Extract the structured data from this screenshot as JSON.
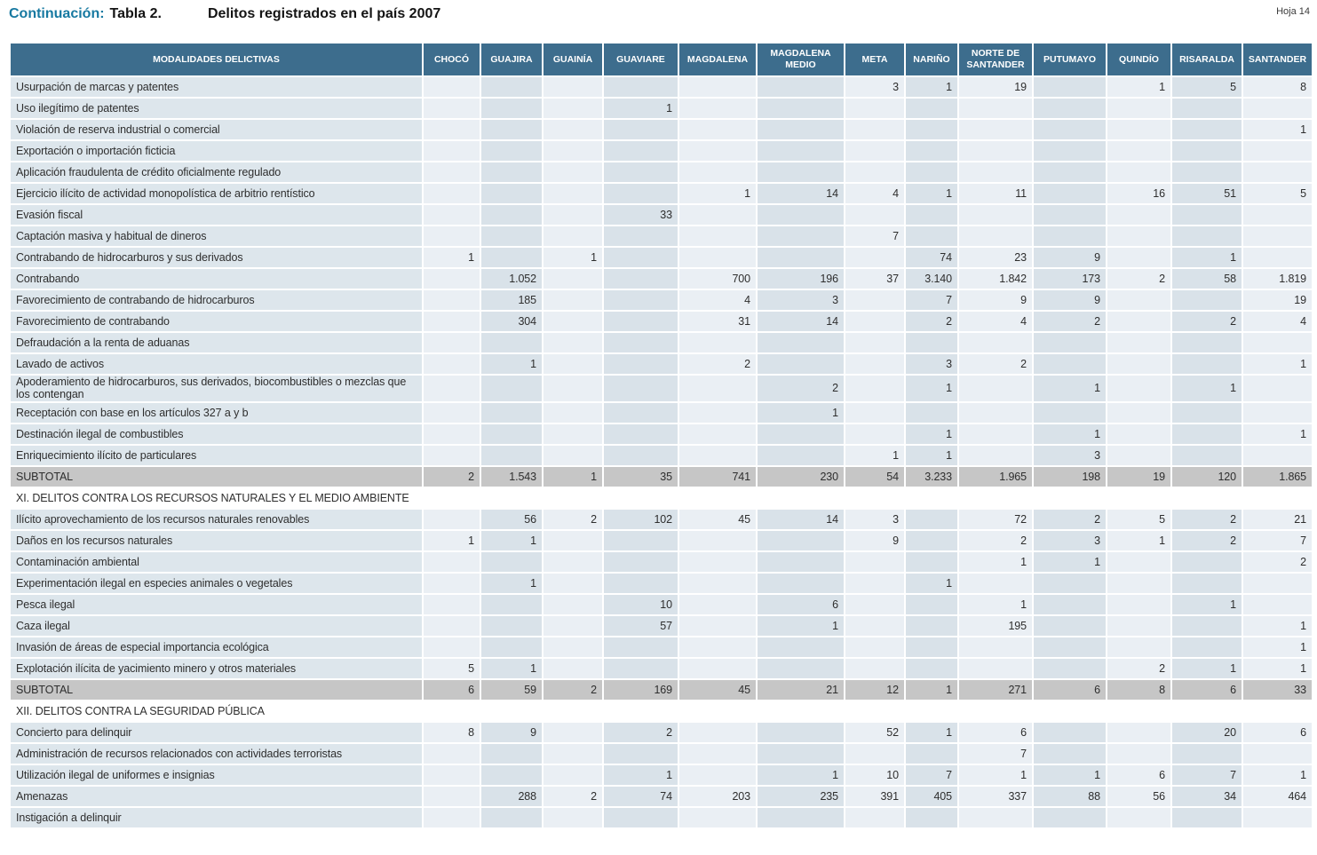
{
  "page": {
    "title_prefix": "Continuación:",
    "title_table": "Tabla 2.",
    "title_main": "Delitos registrados en el país 2007",
    "page_label": "Hoja 14"
  },
  "colors": {
    "header_bg": "#3d6d8d",
    "header_text": "#ffffff",
    "title_accent": "#1779a1",
    "stripe_light": "#eaeff4",
    "stripe_dark": "#d9e2e9",
    "label_column_bg": "#dde6ec",
    "subtotal_bg": "#c6c6c6",
    "body_text": "#2e2e2e"
  },
  "table": {
    "columns": [
      "MODALIDADES DELICTIVAS",
      "CHOCÓ",
      "GUAJIRA",
      "GUAINÍA",
      "GUAVIARE",
      "MAGDALENA",
      "MAGDALENA MEDIO",
      "META",
      "NARIÑO",
      "NORTE DE SANTANDER",
      "PUTUMAYO",
      "QUINDÍO",
      "RISARALDA",
      "SANTANDER"
    ],
    "rows": [
      {
        "label": "Usurpación de marcas y patentes",
        "type": "data",
        "values": [
          "",
          "",
          "",
          "",
          "",
          "",
          "3",
          "1",
          "19",
          "",
          "1",
          "5",
          "8"
        ]
      },
      {
        "label": "Uso ilegítimo de patentes",
        "type": "data",
        "values": [
          "",
          "",
          "",
          "1",
          "",
          "",
          "",
          "",
          "",
          "",
          "",
          "",
          ""
        ]
      },
      {
        "label": "Violación de reserva industrial o comercial",
        "type": "data",
        "values": [
          "",
          "",
          "",
          "",
          "",
          "",
          "",
          "",
          "",
          "",
          "",
          "",
          "1"
        ]
      },
      {
        "label": "Exportación o importación ficticia",
        "type": "data",
        "values": [
          "",
          "",
          "",
          "",
          "",
          "",
          "",
          "",
          "",
          "",
          "",
          "",
          ""
        ]
      },
      {
        "label": "Aplicación fraudulenta de crédito oficialmente regulado",
        "type": "data",
        "values": [
          "",
          "",
          "",
          "",
          "",
          "",
          "",
          "",
          "",
          "",
          "",
          "",
          ""
        ]
      },
      {
        "label": "Ejercicio ilícito de actividad monopolística de arbitrio rentístico",
        "type": "data",
        "values": [
          "",
          "",
          "",
          "",
          "1",
          "14",
          "4",
          "1",
          "11",
          "",
          "16",
          "51",
          "5"
        ]
      },
      {
        "label": "Evasión fiscal",
        "type": "data",
        "values": [
          "",
          "",
          "",
          "33",
          "",
          "",
          "",
          "",
          "",
          "",
          "",
          "",
          ""
        ]
      },
      {
        "label": "Captación masiva y habitual de dineros",
        "type": "data",
        "values": [
          "",
          "",
          "",
          "",
          "",
          "",
          "7",
          "",
          "",
          "",
          "",
          "",
          ""
        ]
      },
      {
        "label": "Contrabando de hidrocarburos y sus derivados",
        "type": "data",
        "values": [
          "1",
          "",
          "1",
          "",
          "",
          "",
          "",
          "74",
          "23",
          "9",
          "",
          "1",
          ""
        ]
      },
      {
        "label": "Contrabando",
        "type": "data",
        "values": [
          "",
          "1.052",
          "",
          "",
          "700",
          "196",
          "37",
          "3.140",
          "1.842",
          "173",
          "2",
          "58",
          "1.819"
        ]
      },
      {
        "label": "Favorecimiento de contrabando de hidrocarburos",
        "type": "data",
        "values": [
          "",
          "185",
          "",
          "",
          "4",
          "3",
          "",
          "7",
          "9",
          "9",
          "",
          "",
          "19"
        ]
      },
      {
        "label": "Favorecimiento de contrabando",
        "type": "data",
        "values": [
          "",
          "304",
          "",
          "",
          "31",
          "14",
          "",
          "2",
          "4",
          "2",
          "",
          "2",
          "4"
        ]
      },
      {
        "label": "Defraudación a la renta de aduanas",
        "type": "data",
        "values": [
          "",
          "",
          "",
          "",
          "",
          "",
          "",
          "",
          "",
          "",
          "",
          "",
          ""
        ]
      },
      {
        "label": "Lavado de activos",
        "type": "data",
        "values": [
          "",
          "1",
          "",
          "",
          "2",
          "",
          "",
          "3",
          "2",
          "",
          "",
          "",
          "1"
        ]
      },
      {
        "label": "Apoderamiento de hidrocarburos, sus derivados, biocombustibles o mezclas que los contengan",
        "type": "data",
        "values": [
          "",
          "",
          "",
          "",
          "",
          "2",
          "",
          "1",
          "",
          "1",
          "",
          "1",
          ""
        ]
      },
      {
        "label": "Receptación con base en los artículos 327 a y b",
        "type": "data",
        "values": [
          "",
          "",
          "",
          "",
          "",
          "1",
          "",
          "",
          "",
          "",
          "",
          "",
          ""
        ]
      },
      {
        "label": "Destinación ilegal de combustibles",
        "type": "data",
        "values": [
          "",
          "",
          "",
          "",
          "",
          "",
          "",
          "1",
          "",
          "1",
          "",
          "",
          "1"
        ]
      },
      {
        "label": "Enriquecimiento ilícito de particulares",
        "type": "data",
        "values": [
          "",
          "",
          "",
          "",
          "",
          "",
          "1",
          "1",
          "",
          "3",
          "",
          "",
          ""
        ]
      },
      {
        "label": "SUBTOTAL",
        "type": "subtotal",
        "values": [
          "2",
          "1.543",
          "1",
          "35",
          "741",
          "230",
          "54",
          "3.233",
          "1.965",
          "198",
          "19",
          "120",
          "1.865"
        ]
      },
      {
        "label": "XI. DELITOS CONTRA LOS RECURSOS NATURALES Y EL MEDIO AMBIENTE",
        "type": "section",
        "values": []
      },
      {
        "label": "Ilícito aprovechamiento de los recursos naturales renovables",
        "type": "data",
        "values": [
          "",
          "56",
          "2",
          "102",
          "45",
          "14",
          "3",
          "",
          "72",
          "2",
          "5",
          "2",
          "21"
        ]
      },
      {
        "label": "Daños en los recursos naturales",
        "type": "data",
        "values": [
          "1",
          "1",
          "",
          "",
          "",
          "",
          "9",
          "",
          "2",
          "3",
          "1",
          "2",
          "7"
        ]
      },
      {
        "label": "Contaminación ambiental",
        "type": "data",
        "values": [
          "",
          "",
          "",
          "",
          "",
          "",
          "",
          "",
          "1",
          "1",
          "",
          "",
          "2"
        ]
      },
      {
        "label": "Experimentación ilegal en especies animales o vegetales",
        "type": "data",
        "values": [
          "",
          "1",
          "",
          "",
          "",
          "",
          "",
          "1",
          "",
          "",
          "",
          "",
          ""
        ]
      },
      {
        "label": "Pesca ilegal",
        "type": "data",
        "values": [
          "",
          "",
          "",
          "10",
          "",
          "6",
          "",
          "",
          "1",
          "",
          "",
          "1",
          ""
        ]
      },
      {
        "label": "Caza ilegal",
        "type": "data",
        "values": [
          "",
          "",
          "",
          "57",
          "",
          "1",
          "",
          "",
          "195",
          "",
          "",
          "",
          "1"
        ]
      },
      {
        "label": "Invasión de áreas de especial importancia ecológica",
        "type": "data",
        "values": [
          "",
          "",
          "",
          "",
          "",
          "",
          "",
          "",
          "",
          "",
          "",
          "",
          "1"
        ]
      },
      {
        "label": "Explotación ilícita de yacimiento minero y otros materiales",
        "type": "data",
        "values": [
          "5",
          "1",
          "",
          "",
          "",
          "",
          "",
          "",
          "",
          "",
          "2",
          "1",
          "1"
        ]
      },
      {
        "label": "SUBTOTAL",
        "type": "subtotal",
        "values": [
          "6",
          "59",
          "2",
          "169",
          "45",
          "21",
          "12",
          "1",
          "271",
          "6",
          "8",
          "6",
          "33"
        ]
      },
      {
        "label": "XII. DELITOS CONTRA LA SEGURIDAD PÚBLICA",
        "type": "section",
        "values": []
      },
      {
        "label": "Concierto para delinquir",
        "type": "data",
        "values": [
          "8",
          "9",
          "",
          "2",
          "",
          "",
          "52",
          "1",
          "6",
          "",
          "",
          "20",
          "6"
        ]
      },
      {
        "label": "Administración de recursos relacionados con actividades terroristas",
        "type": "data",
        "values": [
          "",
          "",
          "",
          "",
          "",
          "",
          "",
          "",
          "7",
          "",
          "",
          "",
          ""
        ]
      },
      {
        "label": "Utilización ilegal de uniformes e insignias",
        "type": "data",
        "values": [
          "",
          "",
          "",
          "1",
          "",
          "1",
          "10",
          "7",
          "1",
          "1",
          "6",
          "7",
          "1"
        ]
      },
      {
        "label": "Amenazas",
        "type": "data",
        "values": [
          "",
          "288",
          "2",
          "74",
          "203",
          "235",
          "391",
          "405",
          "337",
          "88",
          "56",
          "34",
          "464"
        ]
      },
      {
        "label": "Instigación a delinquir",
        "type": "data",
        "values": [
          "",
          "",
          "",
          "",
          "",
          "",
          "",
          "",
          "",
          "",
          "",
          "",
          ""
        ]
      }
    ]
  }
}
